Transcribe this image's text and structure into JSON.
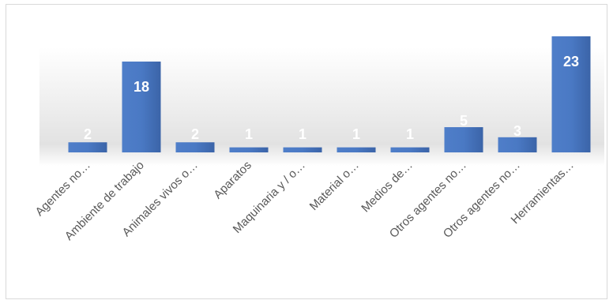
{
  "chart_data": {
    "type": "bar",
    "categories": [
      "Agentes no…",
      "Ambiente de trabajo",
      "Animales vivos o…",
      "Aparatos",
      "Maquinaria y / o…",
      "Material o…",
      "Medios de…",
      "Otros agentes no…",
      "Otros agentes no…",
      "Herramientas…"
    ],
    "values": [
      2,
      18,
      2,
      1,
      1,
      1,
      1,
      5,
      3,
      23
    ],
    "title": "",
    "xlabel": "",
    "ylabel": "",
    "ylim": [
      0,
      23
    ],
    "grid": false,
    "legend": "none",
    "data_labels": true,
    "bar_color": "#4472c4",
    "label_color": "#ffffff",
    "axis_label_color": "#595959"
  }
}
